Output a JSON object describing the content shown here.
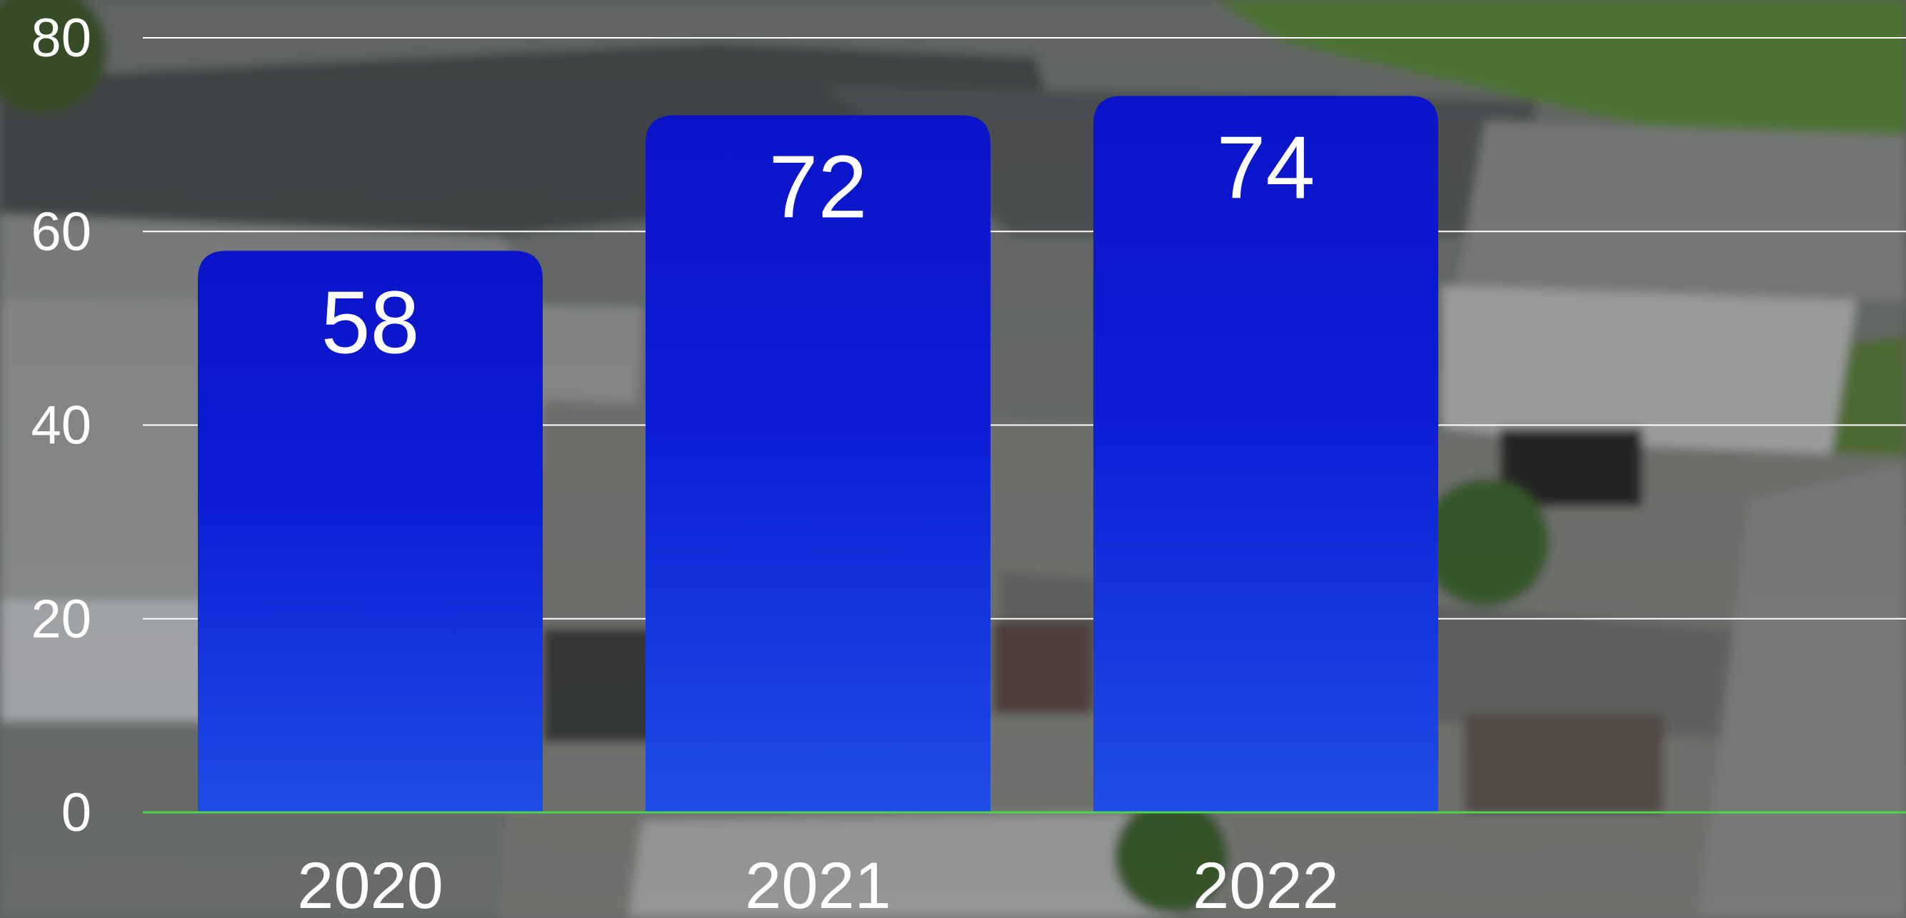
{
  "chart_data": {
    "type": "bar",
    "categories": [
      "2020",
      "2021",
      "2022"
    ],
    "values": [
      58,
      72,
      74
    ],
    "yticks": [
      0,
      20,
      40,
      60,
      80
    ],
    "ylim": [
      0,
      80
    ],
    "title": "",
    "xlabel": "",
    "ylabel": "",
    "grid": true,
    "data_labels": true
  },
  "colors": {
    "bar_top": "#0b14c8",
    "bar_bottom": "#1f4de6",
    "gridline": "#ffffff",
    "baseline": "#4cd44c",
    "text": "#ffffff"
  }
}
